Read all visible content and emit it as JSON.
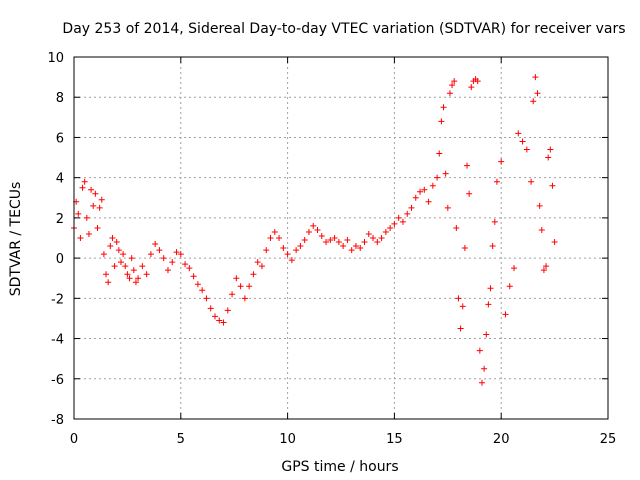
{
  "chart_data": {
    "type": "scatter",
    "title": "Day 253 of 2014, Sidereal Day-to-day VTEC variation (SDTVAR) for receiver vars",
    "xlabel": "GPS time / hours",
    "ylabel": "SDTVAR / TECUs",
    "xlim": [
      0,
      25
    ],
    "ylim": [
      -8,
      10
    ],
    "xticks": [
      0,
      5,
      10,
      15,
      20,
      25
    ],
    "xtick_labels": [
      "0",
      "5",
      "10",
      "15",
      "20",
      "25"
    ],
    "yticks": [
      -8,
      -6,
      -4,
      -2,
      0,
      2,
      4,
      6,
      8,
      10
    ],
    "ytick_labels": [
      "-8",
      "-6",
      "-4",
      "-2",
      "0",
      "2",
      "4",
      "6",
      "8",
      "10"
    ],
    "grid": true,
    "marker": "+",
    "series": [
      {
        "name": "SDTVAR",
        "color": "#ff0000",
        "x": [
          0.0,
          0.1,
          0.2,
          0.3,
          0.4,
          0.5,
          0.6,
          0.7,
          0.8,
          0.9,
          1.0,
          1.1,
          1.2,
          1.3,
          1.4,
          1.5,
          1.6,
          1.7,
          1.8,
          1.9,
          2.0,
          2.1,
          2.2,
          2.3,
          2.4,
          2.5,
          2.6,
          2.7,
          2.8,
          2.9,
          3.0,
          3.2,
          3.4,
          3.6,
          3.8,
          4.0,
          4.2,
          4.4,
          4.6,
          4.8,
          5.0,
          5.2,
          5.4,
          5.6,
          5.8,
          6.0,
          6.2,
          6.4,
          6.6,
          6.8,
          7.0,
          7.2,
          7.4,
          7.6,
          7.8,
          8.0,
          8.2,
          8.4,
          8.6,
          8.8,
          9.0,
          9.2,
          9.4,
          9.6,
          9.8,
          10.0,
          10.2,
          10.4,
          10.6,
          10.8,
          11.0,
          11.2,
          11.4,
          11.6,
          11.8,
          12.0,
          12.2,
          12.4,
          12.6,
          12.8,
          13.0,
          13.2,
          13.4,
          13.6,
          13.8,
          14.0,
          14.2,
          14.4,
          14.6,
          14.8,
          15.0,
          15.2,
          15.4,
          15.6,
          15.8,
          16.0,
          16.2,
          16.4,
          16.6,
          16.8,
          17.0,
          17.1,
          17.2,
          17.3,
          17.4,
          17.5,
          17.6,
          17.7,
          17.8,
          17.9,
          18.0,
          18.1,
          18.2,
          18.3,
          18.4,
          18.5,
          18.6,
          18.7,
          18.8,
          18.9,
          19.0,
          19.1,
          19.2,
          19.3,
          19.4,
          19.5,
          19.6,
          19.7,
          19.8,
          20.0,
          20.2,
          20.4,
          20.6,
          20.8,
          21.0,
          21.2,
          21.4,
          21.5,
          21.6,
          21.7,
          21.8,
          21.9,
          22.0,
          22.1,
          22.2,
          22.3,
          22.4,
          22.5
        ],
        "y": [
          1.5,
          2.8,
          2.2,
          1.0,
          3.5,
          3.8,
          2.0,
          1.2,
          3.4,
          2.6,
          3.2,
          1.5,
          2.5,
          2.9,
          0.2,
          -0.8,
          -1.2,
          0.6,
          1.0,
          -0.4,
          0.8,
          0.4,
          -0.2,
          0.2,
          -0.4,
          -0.8,
          -1.0,
          0.0,
          -0.6,
          -1.2,
          -1.0,
          -0.4,
          -0.8,
          0.2,
          0.7,
          0.4,
          0.0,
          -0.6,
          -0.2,
          0.3,
          0.2,
          -0.3,
          -0.5,
          -0.9,
          -1.3,
          -1.6,
          -2.0,
          -2.5,
          -2.9,
          -3.1,
          -3.2,
          -2.6,
          -1.8,
          -1.0,
          -1.4,
          -2.0,
          -1.4,
          -0.8,
          -0.2,
          -0.4,
          0.4,
          1.0,
          1.3,
          1.0,
          0.5,
          0.2,
          -0.1,
          0.4,
          0.6,
          0.9,
          1.3,
          1.6,
          1.4,
          1.1,
          0.8,
          0.9,
          1.0,
          0.8,
          0.6,
          0.9,
          0.4,
          0.6,
          0.5,
          0.8,
          1.2,
          1.0,
          0.8,
          1.0,
          1.3,
          1.5,
          1.7,
          2.0,
          1.8,
          2.2,
          2.5,
          3.0,
          3.3,
          3.4,
          2.8,
          3.6,
          4.0,
          5.2,
          6.8,
          7.5,
          4.2,
          2.5,
          8.2,
          8.6,
          8.8,
          1.5,
          -2.0,
          -3.5,
          -2.4,
          0.5,
          4.6,
          3.2,
          8.5,
          8.8,
          8.9,
          8.8,
          -4.6,
          -6.2,
          -5.5,
          -3.8,
          -2.3,
          -1.5,
          0.6,
          1.8,
          3.8,
          4.8,
          -2.8,
          -1.4,
          -0.5,
          6.2,
          5.8,
          5.4,
          3.8,
          7.8,
          9.0,
          8.2,
          2.6,
          1.4,
          -0.6,
          -0.4,
          5.0,
          5.4,
          3.6,
          0.8
        ]
      }
    ]
  }
}
